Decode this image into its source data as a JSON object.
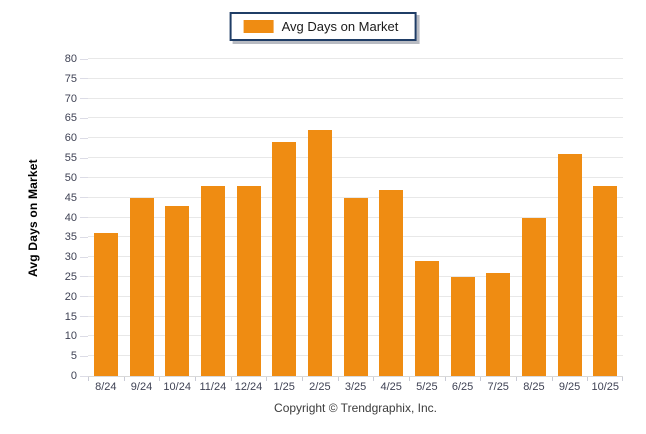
{
  "legend": {
    "label": "Avg Days on Market",
    "swatch_icon": "orange-square-swatch"
  },
  "y_axis": {
    "title": "Avg Days on Market"
  },
  "footer": {
    "text": "Copyright © Trendgraphix, Inc."
  },
  "colors": {
    "bar": "#EF8C12",
    "legend_border": "#1F3D66",
    "gridline": "#E8E8E8",
    "axis_text": "#3F4254"
  },
  "chart_data": {
    "type": "bar",
    "title": "Avg Days on Market",
    "categories": [
      "8/24",
      "9/24",
      "10/24",
      "11/24",
      "12/24",
      "1/25",
      "2/25",
      "3/25",
      "4/25",
      "5/25",
      "6/25",
      "7/25",
      "8/25",
      "9/25",
      "10/25"
    ],
    "values": [
      36,
      45,
      43,
      48,
      48,
      59,
      62,
      45,
      47,
      29,
      25,
      26,
      40,
      56,
      48
    ],
    "series": [
      {
        "name": "Avg Days on Market",
        "values": [
          36,
          45,
          43,
          48,
          48,
          59,
          62,
          45,
          47,
          29,
          25,
          26,
          40,
          56,
          48
        ]
      }
    ],
    "xlabel": "",
    "ylabel": "Avg Days on Market",
    "ylim": [
      0,
      80
    ],
    "ytick_step": 5,
    "yticks": [
      0,
      5,
      10,
      15,
      20,
      25,
      30,
      35,
      40,
      45,
      50,
      55,
      60,
      65,
      70,
      75,
      80
    ],
    "grid": "horizontal",
    "legend_position": "top-center",
    "legend_entries": [
      "Avg Days on Market"
    ]
  }
}
